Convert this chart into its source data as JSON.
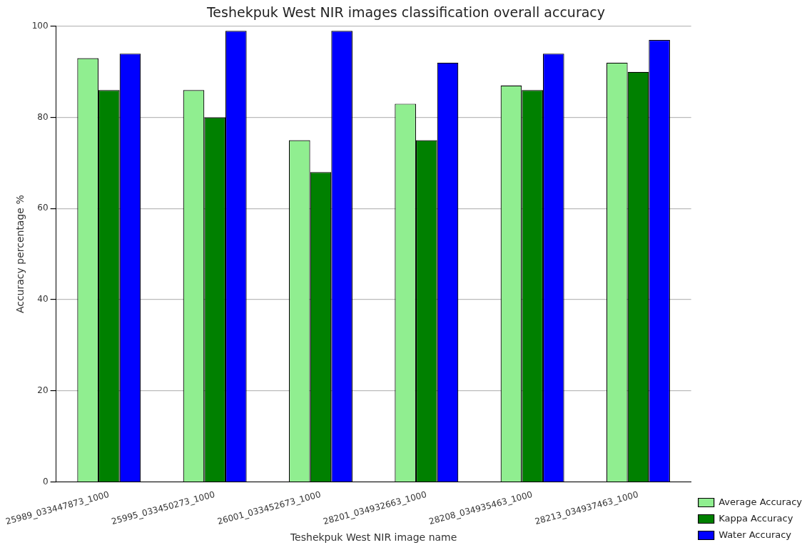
{
  "chart_data": {
    "type": "bar",
    "title": "Teshekpuk West NIR images classification overall accuracy",
    "xlabel": "Teshekpuk West NIR image name",
    "ylabel": "Accuracy percentage %",
    "categories": [
      "25989_033447873_1000",
      "25995_033450273_1000",
      "26001_033452673_1000",
      "28201_034932663_1000",
      "28208_034935463_1000",
      "28213_034937463_1000"
    ],
    "series": [
      {
        "name": "Average Accuracy",
        "color": "#90ee90",
        "values": [
          93,
          86,
          75,
          83,
          87,
          92
        ]
      },
      {
        "name": "Kappa Accuracy",
        "color": "#008000",
        "values": [
          86,
          80,
          68,
          75,
          86,
          90
        ]
      },
      {
        "name": "Water Accuracy",
        "color": "#0000ff",
        "values": [
          94,
          99,
          99,
          92,
          94,
          97
        ]
      }
    ],
    "ylim": [
      0,
      100
    ],
    "yticks": [
      0,
      20,
      40,
      60,
      80,
      100
    ],
    "grid": "y",
    "legend": "bottom right"
  }
}
